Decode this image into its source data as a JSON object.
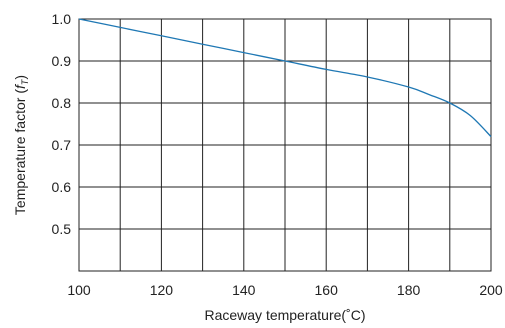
{
  "chart_data": {
    "type": "line",
    "title": "",
    "xlabel": "Raceway temperature(˚C)",
    "ylabel": "Temperature factor (",
    "ylabel_symbol": "f",
    "ylabel_subscript": "T",
    "ylabel_close": ")",
    "xlim": [
      100,
      200
    ],
    "ylim": [
      0.4,
      1.0
    ],
    "x_ticks": [
      100,
      110,
      120,
      130,
      140,
      150,
      160,
      170,
      180,
      190,
      200
    ],
    "x_tick_labels": [
      "100",
      "",
      "120",
      "",
      "140",
      "",
      "160",
      "",
      "180",
      "",
      "200"
    ],
    "y_ticks": [
      0.4,
      0.5,
      0.6,
      0.7,
      0.8,
      0.9,
      1.0
    ],
    "y_tick_labels": [
      "",
      "0.5",
      "0.6",
      "0.7",
      "0.8",
      "0.9",
      "1.0"
    ],
    "grid": true,
    "legend": "none",
    "series": [
      {
        "color": "#1f78b4",
        "x": [
          100,
          110,
          120,
          130,
          140,
          150,
          160,
          170,
          180,
          185,
          190,
          195,
          200
        ],
        "y": [
          1.0,
          0.98,
          0.96,
          0.94,
          0.92,
          0.9,
          0.88,
          0.862,
          0.838,
          0.82,
          0.8,
          0.77,
          0.72
        ]
      }
    ]
  }
}
